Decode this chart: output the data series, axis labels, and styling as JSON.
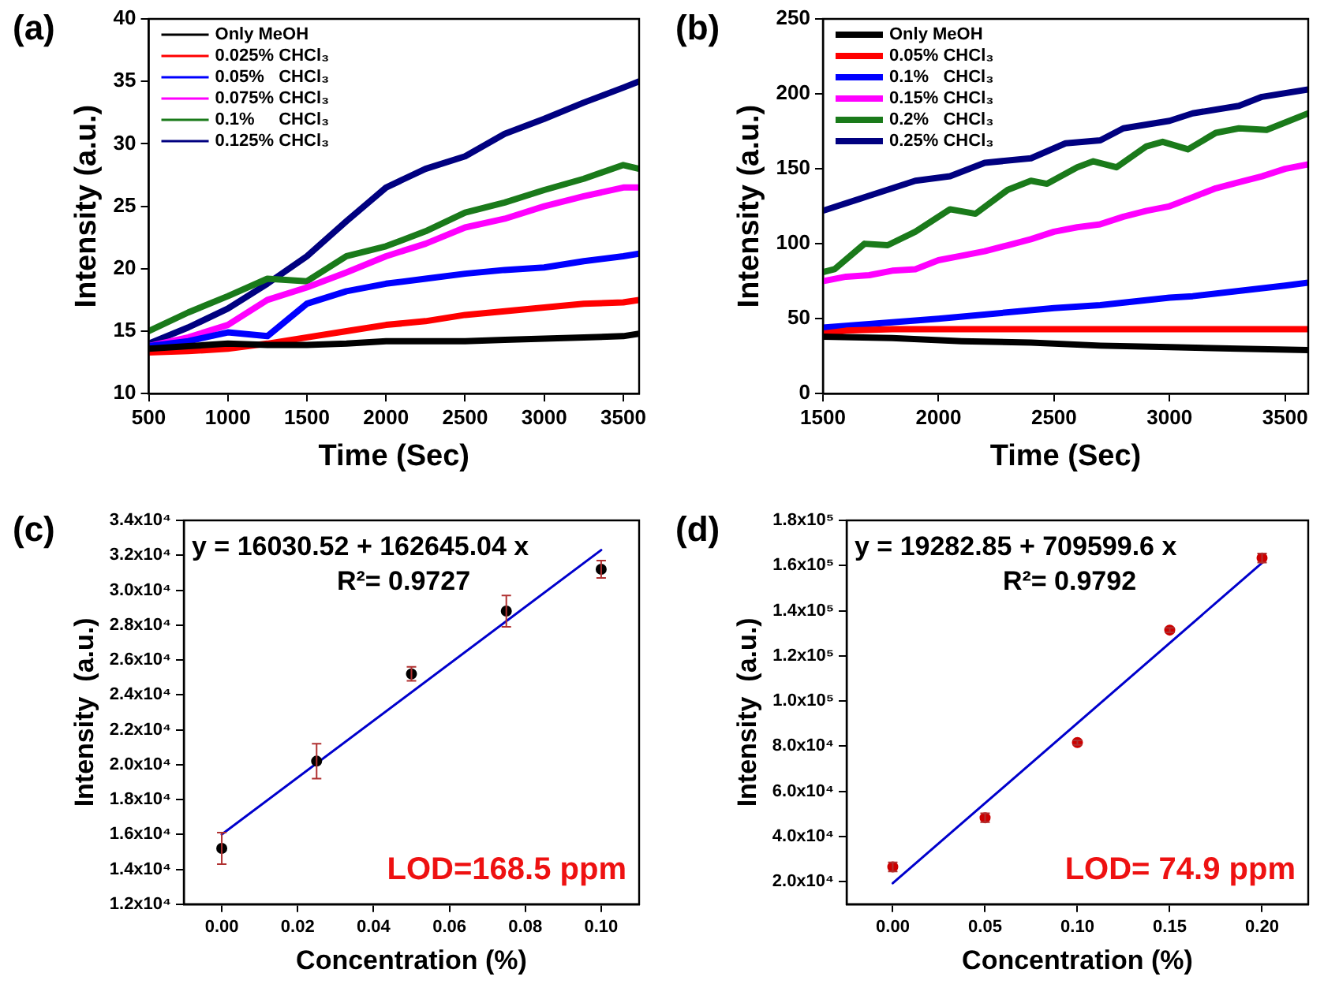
{
  "chart_data": [
    {
      "type": "line",
      "title": "(a)",
      "xlabel": "Time (Sec)",
      "ylabel": "Intensity (a.u.)",
      "legend": "top left",
      "grid": false,
      "xlim": [
        500,
        3600
      ],
      "xticks": [
        500,
        1000,
        1500,
        2000,
        2500,
        3000,
        3500
      ],
      "ylim": [
        10,
        40
      ],
      "yticks": [
        10,
        15,
        20,
        25,
        30,
        35,
        40
      ],
      "x": [
        500,
        750,
        1000,
        1250,
        1500,
        1750,
        2000,
        2250,
        2500,
        2750,
        3000,
        3250,
        3500,
        3600
      ],
      "series": [
        {
          "name": "Only MeOH",
          "color": "#000000",
          "values": [
            13.6,
            13.8,
            14.0,
            13.9,
            13.9,
            14.0,
            14.2,
            14.2,
            14.2,
            14.3,
            14.4,
            14.5,
            14.6,
            14.8
          ]
        },
        {
          "name": "0.025% CHCl₃",
          "color": "#ff0000",
          "values": [
            13.3,
            13.4,
            13.6,
            14.0,
            14.5,
            15.0,
            15.5,
            15.8,
            16.3,
            16.6,
            16.9,
            17.2,
            17.3,
            17.5
          ]
        },
        {
          "name": "0.05%   CHCl₃",
          "color": "#0000ff",
          "values": [
            13.8,
            14.2,
            14.9,
            14.6,
            17.2,
            18.2,
            18.8,
            19.2,
            19.6,
            19.9,
            20.1,
            20.6,
            21.0,
            21.2
          ]
        },
        {
          "name": "0.075% CHCl₃",
          "color": "#ff00ff",
          "values": [
            13.8,
            14.5,
            15.5,
            17.5,
            18.5,
            19.7,
            21.0,
            22.0,
            23.3,
            24.0,
            25.0,
            25.8,
            26.5,
            26.5
          ]
        },
        {
          "name": "0.1%     CHCl₃",
          "color": "#1a7a1a",
          "values": [
            15.0,
            16.5,
            17.8,
            19.2,
            19.0,
            21.0,
            21.8,
            23.0,
            24.5,
            25.3,
            26.3,
            27.2,
            28.3,
            28.0
          ]
        },
        {
          "name": "0.125% CHCl₃",
          "color": "#000080",
          "values": [
            14.0,
            15.3,
            16.8,
            18.8,
            21.0,
            23.8,
            26.5,
            28.0,
            29.0,
            30.8,
            32.0,
            33.3,
            34.5,
            35.0
          ]
        }
      ]
    },
    {
      "type": "line",
      "title": "(b)",
      "xlabel": "Time (Sec)",
      "ylabel": "Intensity (a.u.)",
      "legend": "top left",
      "grid": false,
      "xlim": [
        1500,
        3600
      ],
      "xticks": [
        1500,
        2000,
        2500,
        3000,
        3500
      ],
      "ylim": [
        0,
        250
      ],
      "yticks": [
        0,
        50,
        100,
        150,
        200,
        250
      ],
      "series": [
        {
          "name": "Only MeOH",
          "color": "#000000",
          "x": [
            1500,
            1800,
            2100,
            2400,
            2700,
            3000,
            3300,
            3600
          ],
          "values": [
            38,
            37,
            35,
            34,
            32,
            31,
            30,
            29
          ]
        },
        {
          "name": "0.05% CHCl₃",
          "color": "#ff0000",
          "x": [
            1500,
            1600,
            1800,
            2100,
            2400,
            2700,
            3000,
            3300,
            3600
          ],
          "values": [
            40,
            42,
            43,
            43,
            43,
            43,
            43,
            43,
            43
          ]
        },
        {
          "name": "0.1%   CHCl₃",
          "color": "#0000ff",
          "x": [
            1500,
            2000,
            2500,
            2700,
            3000,
            3100,
            3500,
            3600
          ],
          "values": [
            44,
            50,
            57,
            59,
            64,
            65,
            72,
            74
          ]
        },
        {
          "name": "0.15% CHCl₃",
          "color": "#ff00ff",
          "x": [
            1500,
            1600,
            1700,
            1800,
            1900,
            2000,
            2100,
            2200,
            2300,
            2400,
            2500,
            2600,
            2700,
            2800,
            2900,
            3000,
            3100,
            3200,
            3300,
            3400,
            3500,
            3600
          ],
          "values": [
            75,
            78,
            79,
            82,
            83,
            89,
            92,
            95,
            99,
            103,
            108,
            111,
            113,
            118,
            122,
            125,
            131,
            137,
            141,
            145,
            150,
            153
          ]
        },
        {
          "name": "0.2%   CHCl₃",
          "color": "#1a7a1a",
          "x": [
            1500,
            1550,
            1680,
            1780,
            1900,
            2050,
            2160,
            2300,
            2400,
            2470,
            2600,
            2670,
            2770,
            2900,
            2970,
            3080,
            3200,
            3300,
            3420,
            3600
          ],
          "values": [
            81,
            83,
            100,
            99,
            108,
            123,
            120,
            136,
            142,
            140,
            151,
            155,
            151,
            165,
            168,
            163,
            174,
            177,
            176,
            187
          ]
        },
        {
          "name": "0.25% CHCl₃",
          "color": "#000080",
          "x": [
            1500,
            1700,
            1900,
            2050,
            2200,
            2400,
            2550,
            2700,
            2800,
            3000,
            3100,
            3300,
            3400,
            3600
          ],
          "values": [
            122,
            132,
            142,
            145,
            154,
            157,
            167,
            169,
            177,
            182,
            187,
            192,
            198,
            203
          ]
        }
      ]
    },
    {
      "type": "scatter",
      "title": "(c)",
      "xlabel": "Concentration (%)",
      "ylabel": "Intensity  (a.u.)",
      "grid": false,
      "xlim": [
        -0.01,
        0.11
      ],
      "xticks": [
        {
          "value": 0,
          "label": "0.00"
        },
        {
          "value": 0.02,
          "label": "0.02"
        },
        {
          "value": 0.04,
          "label": "0.04"
        },
        {
          "value": 0.06,
          "label": "0.06"
        },
        {
          "value": 0.08,
          "label": "0.08"
        },
        {
          "value": 0.1,
          "label": "0.10"
        }
      ],
      "ylim": [
        12000,
        34000
      ],
      "yticks": [
        {
          "value": 12000,
          "label": "1.2x10⁴"
        },
        {
          "value": 14000,
          "label": "1.4x10⁴"
        },
        {
          "value": 16000,
          "label": "1.6x10⁴"
        },
        {
          "value": 18000,
          "label": "1.8x10⁴"
        },
        {
          "value": 20000,
          "label": "2.0x10⁴"
        },
        {
          "value": 22000,
          "label": "2.2x10⁴"
        },
        {
          "value": 24000,
          "label": "2.4x10⁴"
        },
        {
          "value": 26000,
          "label": "2.6x10⁴"
        },
        {
          "value": 28000,
          "label": "2.8x10⁴"
        },
        {
          "value": 30000,
          "label": "3.0x10⁴"
        },
        {
          "value": 32000,
          "label": "3.2x10⁴"
        },
        {
          "value": 34000,
          "label": "3.4x10⁴"
        }
      ],
      "annotations": [
        "y = 16030.52 + 162645.04 x",
        "R²= 0.9727",
        "LOD=168.5 ppm"
      ],
      "series": [
        {
          "type": "scatter",
          "marker": "circle",
          "color": "#000000",
          "x": [
            0,
            0.025,
            0.05,
            0.075,
            0.1
          ],
          "values": [
            15200,
            20200,
            25200,
            28800,
            31200
          ],
          "errors": [
            900,
            1000,
            400,
            900,
            500
          ]
        },
        {
          "type": "line",
          "marker": "none",
          "color": "#0000cc",
          "x": [
            0,
            0.1
          ],
          "values": [
            16000,
            32300
          ]
        }
      ]
    },
    {
      "type": "scatter",
      "title": "(d)",
      "xlabel": "Concentration (%)",
      "ylabel": "Intensity  (a.u.)",
      "grid": false,
      "xlim": [
        -0.025,
        0.225
      ],
      "xticks": [
        {
          "value": 0,
          "label": "0.00"
        },
        {
          "value": 0.05,
          "label": "0.05"
        },
        {
          "value": 0.1,
          "label": "0.10"
        },
        {
          "value": 0.15,
          "label": "0.15"
        },
        {
          "value": 0.2,
          "label": "0.20"
        }
      ],
      "ylim": [
        10000,
        180000
      ],
      "yticks": [
        {
          "value": 20000,
          "label": "2.0x10⁴"
        },
        {
          "value": 40000,
          "label": "4.0x10⁴"
        },
        {
          "value": 60000,
          "label": "6.0x10⁴"
        },
        {
          "value": 80000,
          "label": "8.0x10⁴"
        },
        {
          "value": 100000,
          "label": "1.0x10⁵"
        },
        {
          "value": 120000,
          "label": "1.2x10⁵"
        },
        {
          "value": 140000,
          "label": "1.4x10⁵"
        },
        {
          "value": 160000,
          "label": "1.6x10⁵"
        },
        {
          "value": 180000,
          "label": "1.8x10⁵"
        }
      ],
      "annotations": [
        "y = 19282.85 + 709599.6 x",
        "R²= 0.9792",
        "LOD= 74.9 ppm"
      ],
      "series": [
        {
          "type": "scatter",
          "marker": "circle",
          "color": "#cc0000",
          "x": [
            0,
            0.05,
            0.1,
            0.15,
            0.2
          ],
          "values": [
            26500,
            48300,
            81600,
            131400,
            163300
          ],
          "errors": [
            2000,
            2000,
            1000,
            1000,
            2000
          ]
        },
        {
          "type": "line",
          "marker": "none",
          "color": "#0000cc",
          "x": [
            0,
            0.2
          ],
          "values": [
            19300,
            161200
          ]
        }
      ]
    }
  ]
}
